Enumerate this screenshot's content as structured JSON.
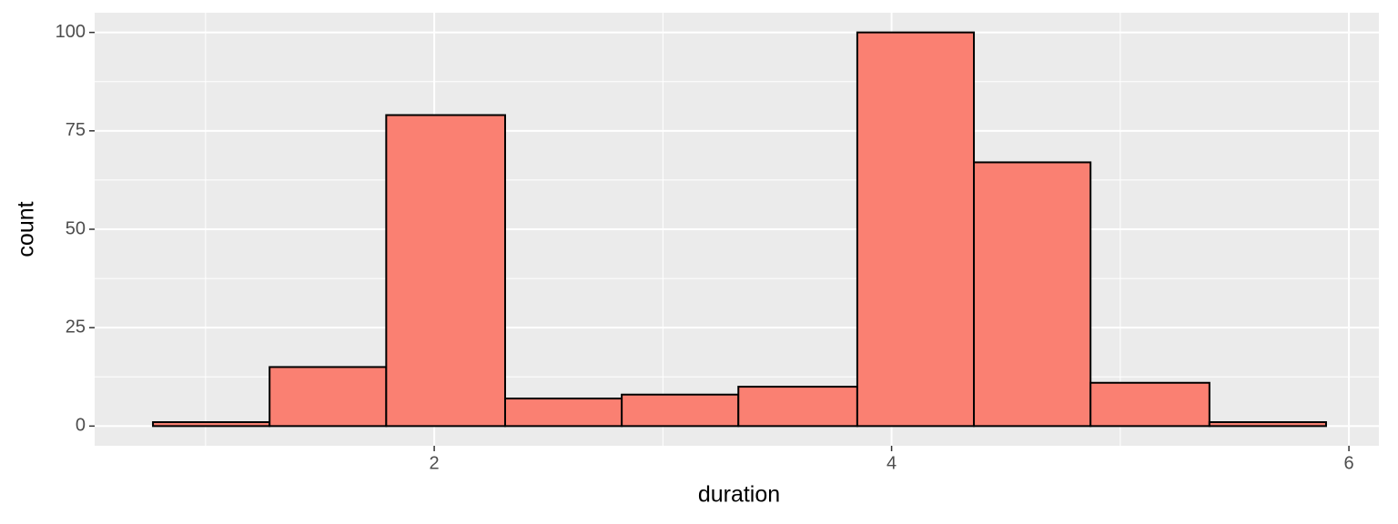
{
  "chart_data": {
    "type": "histogram",
    "x_label": "duration",
    "y_label": "count",
    "bins": [
      0.77,
      1.28,
      1.79,
      2.31,
      2.82,
      3.33,
      3.85,
      4.36,
      4.87,
      5.39,
      5.9
    ],
    "counts": [
      1,
      15,
      79,
      7,
      8,
      10,
      100,
      67,
      11,
      1
    ],
    "color": "#fa8072",
    "edge_color": "#000000",
    "xlim": [
      0.515,
      6.131
    ],
    "ylim": [
      -5,
      105
    ],
    "xticks": [
      2,
      4,
      6
    ],
    "yticks": [
      0,
      25,
      50,
      75,
      100
    ],
    "grid": true
  }
}
